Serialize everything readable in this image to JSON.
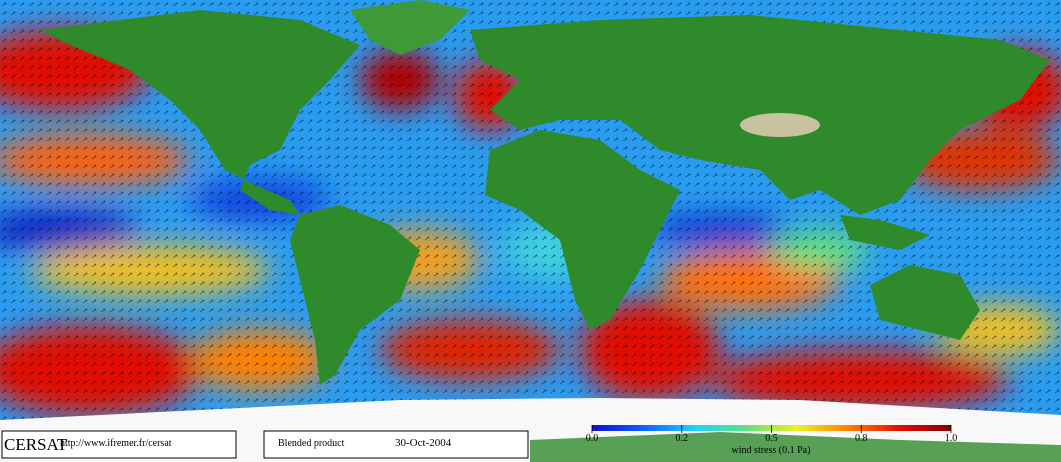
{
  "footer": {
    "logo": "CERSAT",
    "url": "http://www.ifremer.fr/cersat",
    "product": "Blended product",
    "date": "30-Oct-2004"
  },
  "colorbar": {
    "ticks": [
      {
        "value": 0,
        "label": "0.0"
      },
      0.2,
      0.5,
      0.8,
      {
        "value": 1,
        "label": "1.0"
      }
    ],
    "label": "wind stress (0.1 Pa)",
    "colors": [
      "#1010c0",
      "#1060ff",
      "#20d0ff",
      "#60e080",
      "#f0f020",
      "#ff8000",
      "#e01000",
      "#800000"
    ]
  }
}
